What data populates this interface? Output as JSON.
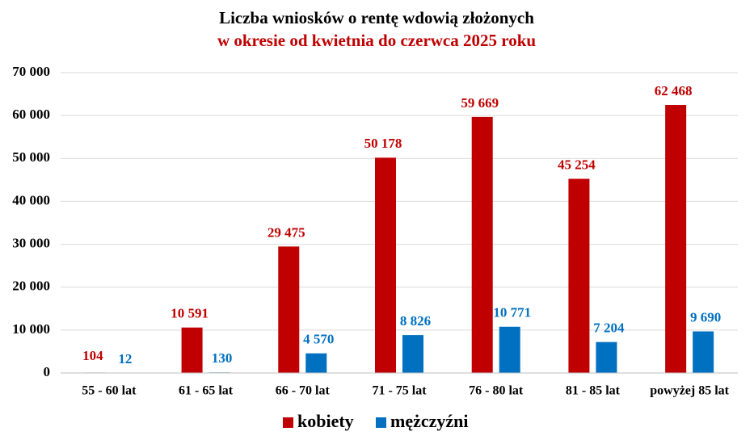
{
  "chart_data": {
    "type": "bar",
    "title": "Liczba wniosków o rentę wdowią złożonych",
    "subtitle": "w okresie od kwietnia do czerwca 2025 roku",
    "categories": [
      "55 - 60 lat",
      "61 - 65 lat",
      "66 - 70 lat",
      "71 - 75 lat",
      "76 - 80 lat",
      "81 - 85 lat",
      "powyżej 85 lat"
    ],
    "series": [
      {
        "name": "kobiety",
        "color": "#c00000",
        "values": [
          104,
          10591,
          29475,
          50178,
          59669,
          45254,
          62468
        ],
        "value_labels": [
          "104",
          "10 591",
          "29 475",
          "50 178",
          "59 669",
          "45 254",
          "62 468"
        ]
      },
      {
        "name": "mężczyźni",
        "color": "#0070c0",
        "values": [
          12,
          130,
          4570,
          8826,
          10771,
          7204,
          9690
        ],
        "value_labels": [
          "12",
          "130",
          "4 570",
          "8 826",
          "10 771",
          "7 204",
          "9 690"
        ]
      }
    ],
    "ylim": [
      0,
      70000
    ],
    "yticks": [
      0,
      {
        "value": 10000,
        "label": "10 000"
      },
      {
        "value": 20000,
        "label": "20 000"
      },
      {
        "value": 30000,
        "label": "30 000"
      },
      {
        "value": 40000,
        "label": "40 000"
      },
      {
        "value": 50000,
        "label": "50 000"
      },
      {
        "value": 60000,
        "label": "60 000"
      },
      {
        "value": 70000,
        "label": "70 000"
      }
    ],
    "grid": true,
    "legend": "bottom"
  }
}
